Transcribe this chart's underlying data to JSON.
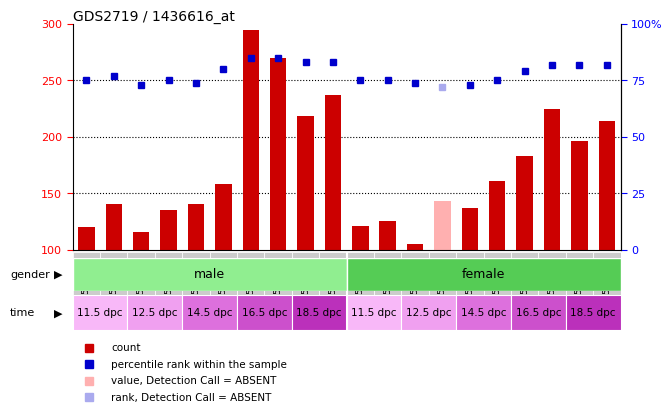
{
  "title": "GDS2719 / 1436616_at",
  "samples": [
    "GSM158596",
    "GSM158599",
    "GSM158602",
    "GSM158604",
    "GSM158606",
    "GSM158607",
    "GSM158608",
    "GSM158609",
    "GSM158610",
    "GSM158611",
    "GSM158616",
    "GSM158618",
    "GSM158620",
    "GSM158621",
    "GSM158622",
    "GSM158624",
    "GSM158625",
    "GSM158626",
    "GSM158628",
    "GSM158630"
  ],
  "bar_values": [
    120,
    140,
    116,
    135,
    140,
    158,
    295,
    270,
    218,
    237,
    121,
    125,
    105,
    143,
    137,
    161,
    183,
    225,
    196,
    214
  ],
  "bar_absent": [
    false,
    false,
    false,
    false,
    false,
    false,
    false,
    false,
    false,
    false,
    false,
    false,
    false,
    true,
    false,
    false,
    false,
    false,
    false,
    false
  ],
  "dot_values": [
    75,
    77,
    73,
    75,
    74,
    80,
    85,
    85,
    83,
    83,
    75,
    75,
    74,
    72,
    73,
    75,
    79,
    82,
    82,
    82
  ],
  "dot_absent": [
    false,
    false,
    false,
    false,
    false,
    false,
    false,
    false,
    false,
    false,
    false,
    false,
    false,
    true,
    false,
    false,
    false,
    false,
    false,
    false
  ],
  "ylim_left": [
    100,
    300
  ],
  "ylim_right": [
    0,
    100
  ],
  "yticks_left": [
    100,
    150,
    200,
    250,
    300
  ],
  "yticks_right": [
    0,
    25,
    50,
    75,
    100
  ],
  "bar_color": "#cc0000",
  "bar_absent_color": "#ffb0b0",
  "dot_color": "#0000cc",
  "dot_absent_color": "#aaaaee",
  "gender_color_male": "#90ee90",
  "gender_color_female": "#55cc55",
  "time_colors": [
    "#f8b8f8",
    "#f0a0f0",
    "#dd70dd",
    "#cc50cc",
    "#bb30bb",
    "#f8b8f8",
    "#f0a0f0",
    "#dd70dd",
    "#cc50cc",
    "#bb30bb"
  ],
  "time_texts": [
    "11.5 dpc",
    "12.5 dpc",
    "14.5 dpc",
    "16.5 dpc",
    "18.5 dpc",
    "11.5 dpc",
    "12.5 dpc",
    "14.5 dpc",
    "16.5 dpc",
    "18.5 dpc"
  ],
  "legend_items": [
    {
      "color": "#cc0000",
      "label": "count"
    },
    {
      "color": "#0000cc",
      "label": "percentile rank within the sample"
    },
    {
      "color": "#ffb0b0",
      "label": "value, Detection Call = ABSENT"
    },
    {
      "color": "#aaaaee",
      "label": "rank, Detection Call = ABSENT"
    }
  ]
}
